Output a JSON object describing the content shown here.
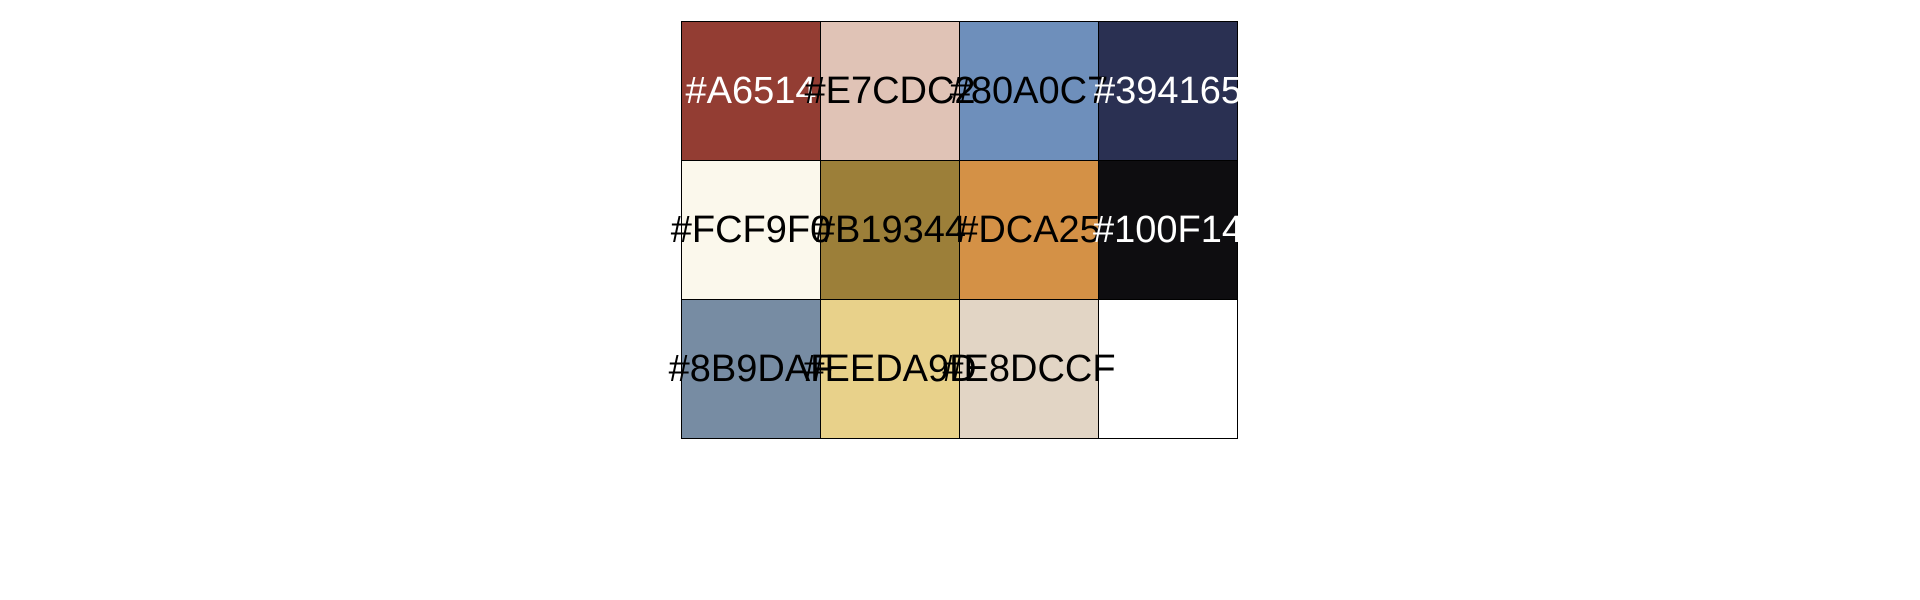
{
  "palette": {
    "swatches": [
      {
        "label": "#A6514",
        "color": "#933D33",
        "text_color": "#ffffff"
      },
      {
        "label": "#E7CDC2",
        "color": "#E0C3B6",
        "text_color": "#000000"
      },
      {
        "label": "#80A0C7",
        "color": "#6E8FBB",
        "text_color": "#000000"
      },
      {
        "label": "#394165",
        "color": "#2A3052",
        "text_color": "#ffffff"
      },
      {
        "label": "#FCF9F0",
        "color": "#FBF8EC",
        "text_color": "#000000"
      },
      {
        "label": "#B19344",
        "color": "#9C7F39",
        "text_color": "#000000"
      },
      {
        "label": "#DCA25",
        "color": "#D49146",
        "text_color": "#000000"
      },
      {
        "label": "#100F14",
        "color": "#0E0D10",
        "text_color": "#ffffff"
      },
      {
        "label": "#8B9DAF",
        "color": "#778CA3",
        "text_color": "#000000"
      },
      {
        "label": "#EEDA9D",
        "color": "#E8D18A",
        "text_color": "#000000"
      },
      {
        "label": "#E8DCCF",
        "color": "#E2D5C5",
        "text_color": "#000000"
      },
      {
        "label": "",
        "color": "#FFFFFF",
        "text_color": "#000000"
      }
    ]
  }
}
